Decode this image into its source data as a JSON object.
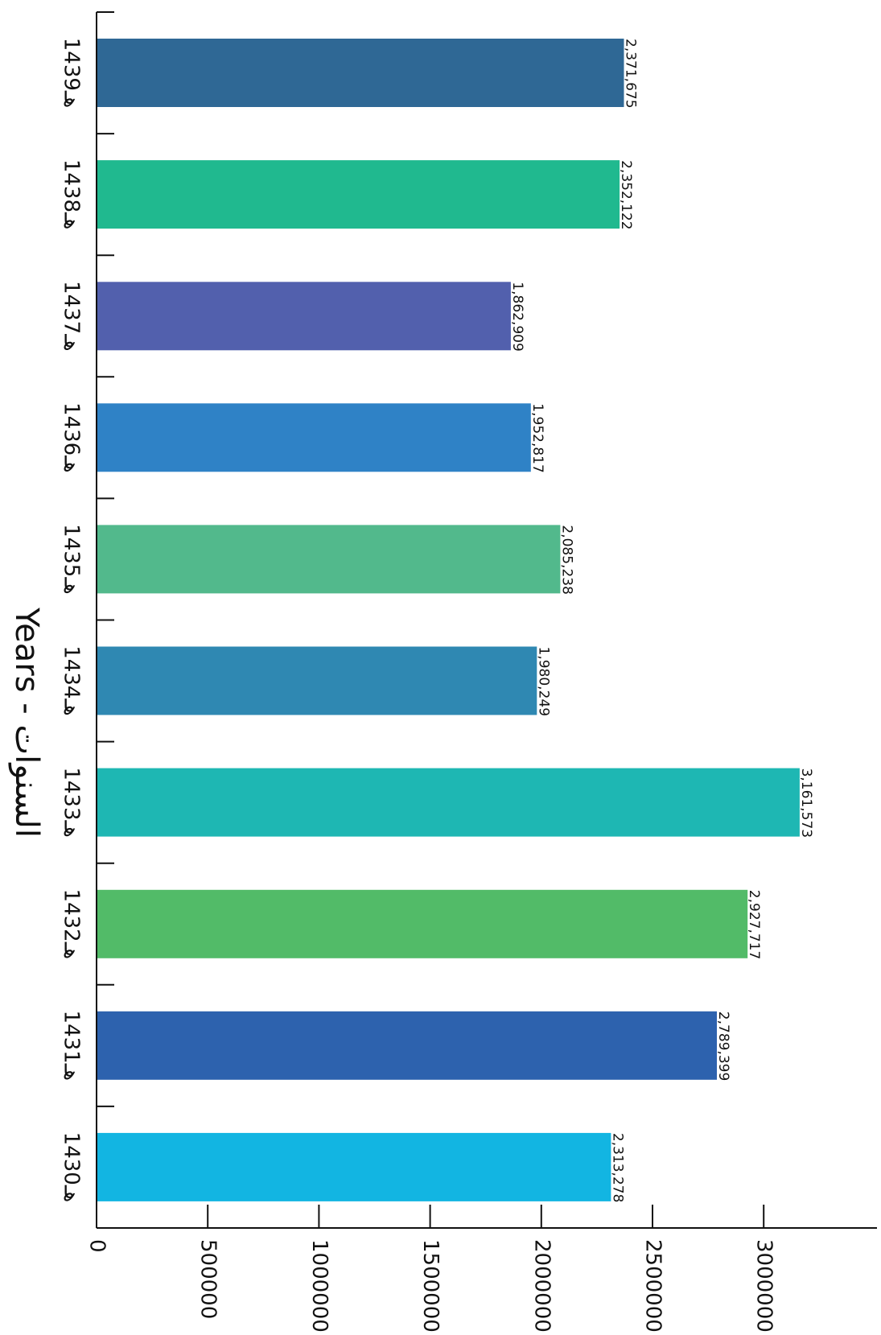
{
  "chart_data": {
    "type": "bar",
    "orientation": "horizontal",
    "rotation": "page rotated 90 degrees clockwise",
    "categories": [
      "1430هـ",
      "1431هـ",
      "1432هـ",
      "1433هـ",
      "1434هـ",
      "1435هـ",
      "1436هـ",
      "1437هـ",
      "1438هـ",
      "1439هـ"
    ],
    "values": [
      2313278,
      2789399,
      2927717,
      3161573,
      1980249,
      2085238,
      1952817,
      1862909,
      2352122,
      2371675
    ],
    "value_labels": [
      "2,313,278",
      "2,789,399",
      "2,927,717",
      "3,161,573",
      "1,980,249",
      "2,085,238",
      "1,952,817",
      "1,862,909",
      "2,352,122",
      "2,371,675"
    ],
    "colors": [
      "#12B5E2",
      "#2D62AE",
      "#52BB68",
      "#1EB7B3",
      "#2F88B2",
      "#52B98C",
      "#2F82C6",
      "#5260AD",
      "#20B98F",
      "#2F6895"
    ],
    "ticks": [
      "0",
      "500000",
      "1000000",
      "1500000",
      "2000000",
      "2500000",
      "3000000"
    ],
    "tick_values": [
      0,
      500000,
      1000000,
      1500000,
      2000000,
      2500000,
      3000000
    ],
    "xlim": [
      0,
      3500000
    ],
    "category_axis_title": "السنوات - Years",
    "value_axis_title": "",
    "title": "",
    "grid": false,
    "legend": "none"
  }
}
